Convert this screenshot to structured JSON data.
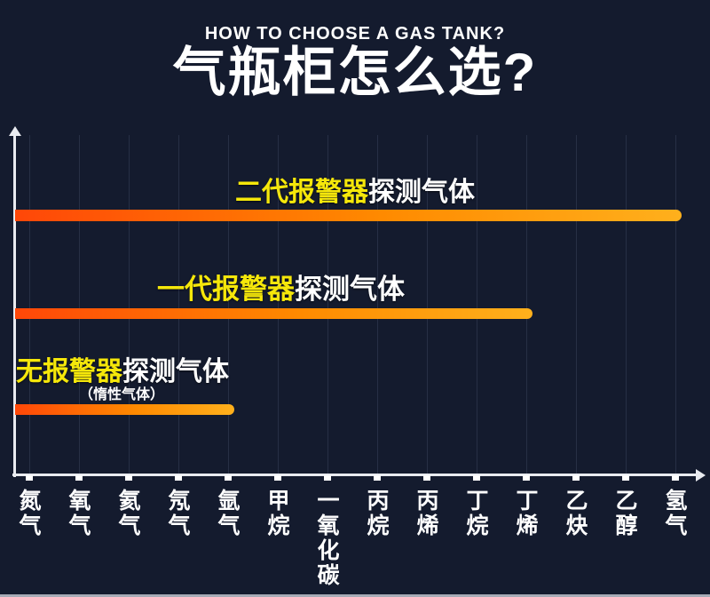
{
  "page": {
    "background": "#141b2e",
    "bottom_strip_color": "#a6abb6"
  },
  "header": {
    "subtitle_en": "HOW TO CHOOSE A GAS TANK?",
    "title_zh": "气瓶柜怎么选?"
  },
  "chart_data": {
    "type": "bar",
    "orientation": "horizontal",
    "title": "气瓶柜怎么选?",
    "subtitle": "HOW TO CHOOSE A GAS TANK?",
    "categories": [
      "氮气",
      "氧气",
      "氦气",
      "氖气",
      "氩气",
      "甲烷",
      "一氧化碳",
      "丙烷",
      "丙烯",
      "丁烷",
      "丁烯",
      "乙炔",
      "乙醇",
      "氢气"
    ],
    "series": [
      {
        "name": "二代报警器探测气体",
        "label_highlight": "二代报警器",
        "label_rest": "探测气体",
        "covers_through": "氢气",
        "num_gases": 14
      },
      {
        "name": "一代报警器探测气体",
        "label_highlight": "一代报警器",
        "label_rest": "探测气体",
        "covers_through": "丁烯",
        "num_gases": 11
      },
      {
        "name": "无报警器探测气体",
        "label_highlight": "无报警器",
        "label_rest": "探测气体",
        "note": "（惰性气体）",
        "covers_through": "氩气",
        "num_gases": 5
      }
    ],
    "grid": true,
    "legend_position": "labels-above-bars",
    "colors": {
      "background": "#141b2e",
      "bar_gradient_start": "#ff4708",
      "bar_gradient_end": "#ffb01c",
      "highlight_text": "#f5e70a",
      "axis": "#e9ebf0"
    }
  }
}
